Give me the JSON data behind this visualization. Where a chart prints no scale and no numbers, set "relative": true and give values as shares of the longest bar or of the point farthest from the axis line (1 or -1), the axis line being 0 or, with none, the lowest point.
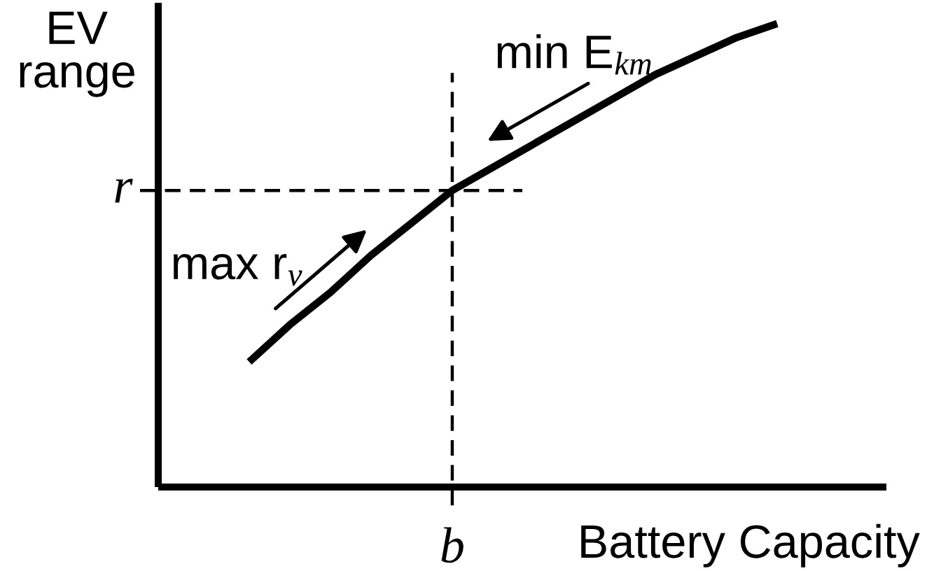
{
  "chart_data": {
    "type": "line",
    "relative": true,
    "xlabel": "Battery Capacity",
    "ylabel": "EV\nrange",
    "categories": [
      null,
      null,
      null,
      null,
      null,
      null,
      null,
      null,
      null,
      null,
      null,
      null,
      null,
      null
    ],
    "series": [
      {
        "color": "#000000",
        "values": [
          0.27,
          0.35,
          0.42,
          0.5,
          0.57,
          0.64,
          0.69,
          0.74,
          0.79,
          0.84,
          0.89,
          0.93,
          0.97,
          1.0
        ]
      }
    ],
    "ref_lines": [
      {
        "axis": "y",
        "value": 0.64,
        "label": "r",
        "color": "#000000",
        "line_style": "dashed"
      }
    ],
    "annotations": [
      "max r$_{v}$",
      "min E$_{km}$",
      "b"
    ]
  }
}
